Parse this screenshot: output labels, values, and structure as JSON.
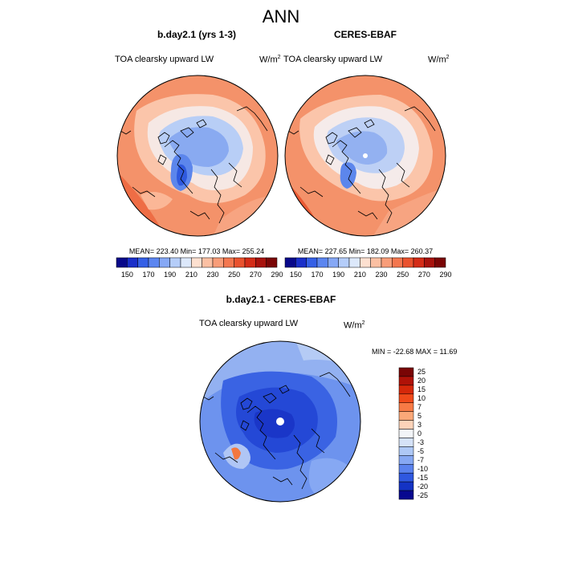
{
  "title": "ANN",
  "panels": [
    {
      "title": "b.day2.1 (yrs 1-3)",
      "variable": "TOA clearsky upward LW",
      "units": "W/m",
      "units_sup": "2",
      "stats": "MEAN= 223.40  Min= 177.03  Max= 255.24",
      "colorbar_ticks": [
        "150",
        "170",
        "190",
        "210",
        "230",
        "250",
        "270",
        "290"
      ]
    },
    {
      "title": "CERES-EBAF",
      "variable": "TOA clearsky upward LW",
      "units": "W/m",
      "units_sup": "2",
      "stats": "MEAN= 227.65  Min= 182.09  Max= 260.37",
      "colorbar_ticks": [
        "150",
        "170",
        "190",
        "210",
        "230",
        "250",
        "270",
        "290"
      ]
    }
  ],
  "diff_panel": {
    "title": "b.day2.1 - CERES-EBAF",
    "variable": "TOA clearsky upward LW",
    "units": "W/m",
    "units_sup": "2",
    "stats": "MIN = -22.68 MAX =  11.69",
    "colorbar_ticks": [
      "25",
      "20",
      "15",
      "10",
      "7",
      "5",
      "3",
      "0",
      "-3",
      "-5",
      "-7",
      "-10",
      "-15",
      "-20",
      "-25"
    ]
  },
  "colors": {
    "abs_scale": [
      "#08088a",
      "#1a2fc9",
      "#3560e6",
      "#5c86f0",
      "#86a8f5",
      "#b5cdf9",
      "#dce8fb",
      "#fde0d0",
      "#fbc0a3",
      "#f89d79",
      "#f3774f",
      "#e9522e",
      "#d42c17",
      "#a8120c",
      "#7a0505"
    ],
    "diff_scale": [
      "#7a0505",
      "#b01208",
      "#d6280a",
      "#f04a1a",
      "#f77a45",
      "#fba878",
      "#fcd3b9",
      "#f3f5f8",
      "#d5e2f8",
      "#aec8f6",
      "#86a8f3",
      "#5a82ee",
      "#2f58e0",
      "#1433c4",
      "#070890"
    ]
  }
}
